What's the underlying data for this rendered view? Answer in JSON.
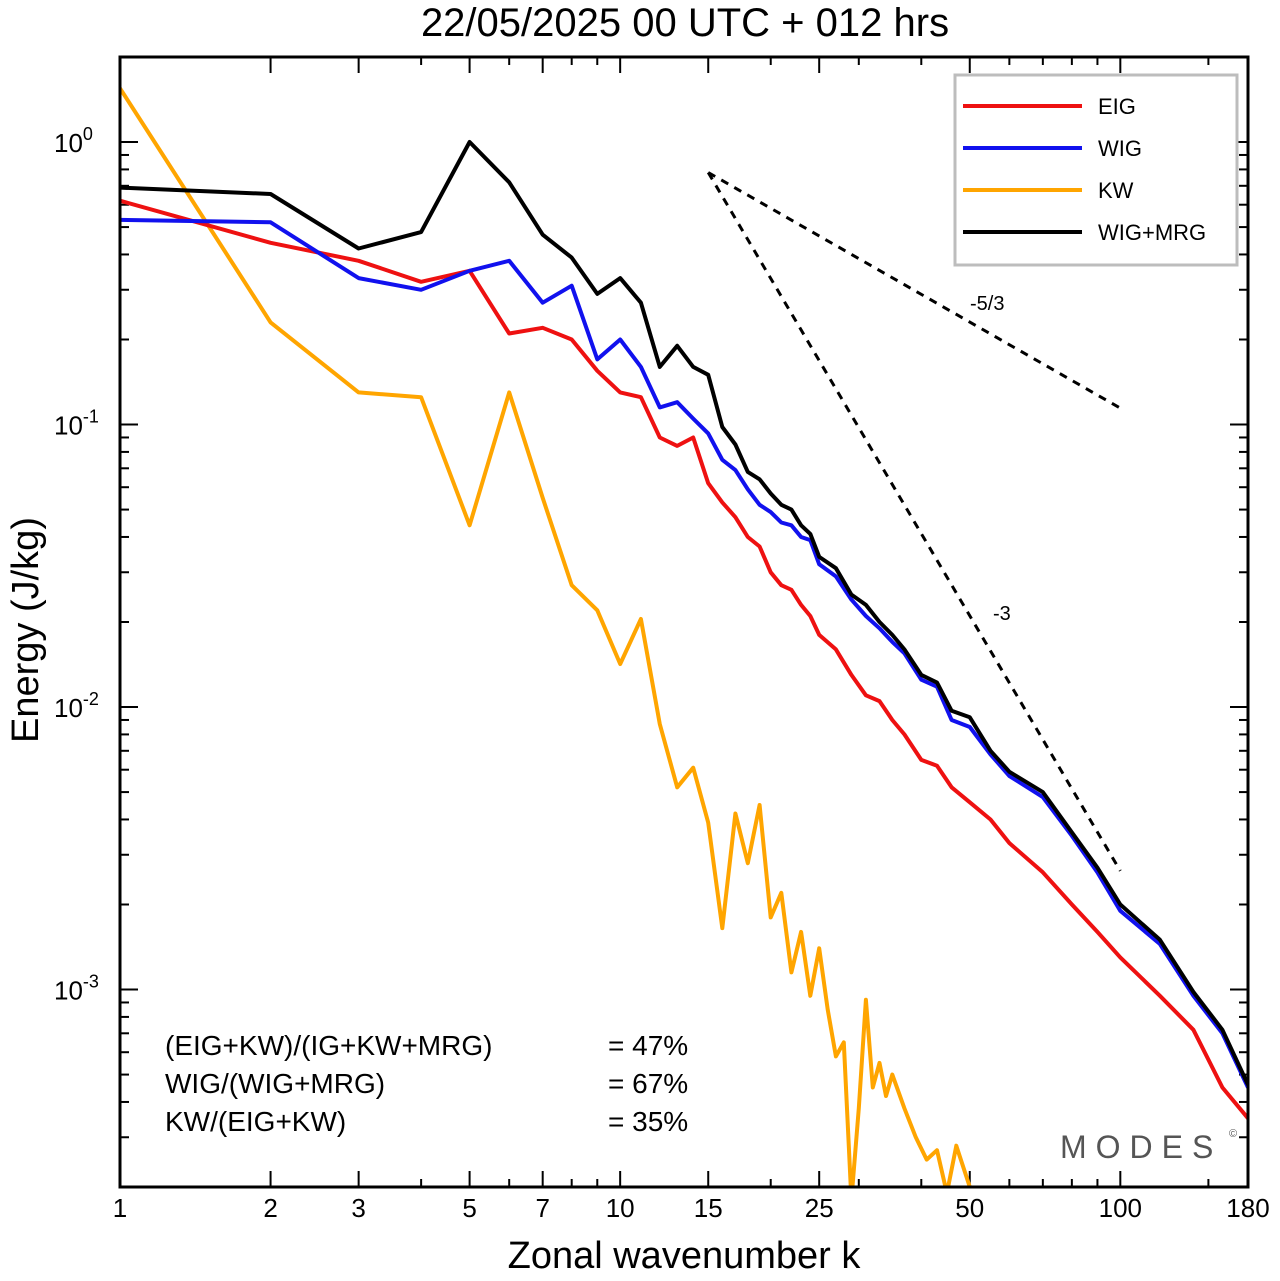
{
  "chart_data": {
    "type": "line",
    "title": "22/05/2025  00 UTC  + 012 hrs",
    "xlabel": "Zonal wavenumber k",
    "ylabel": "Energy (J/kg)",
    "xscale": "log",
    "yscale": "log",
    "xlim": [
      1,
      180
    ],
    "ylim": [
      0.0002,
      2.0
    ],
    "x_ticks": [
      1,
      2,
      3,
      5,
      7,
      10,
      15,
      25,
      50,
      100,
      180
    ],
    "y_ticks": [
      {
        "value": 1,
        "base": "10",
        "exp": "0"
      },
      {
        "value": 0.1,
        "base": "10",
        "exp": "-1"
      },
      {
        "value": 0.01,
        "base": "10",
        "exp": "-2"
      },
      {
        "value": 0.001,
        "base": "10",
        "exp": "-3"
      }
    ],
    "legend": {
      "position": "top-right"
    },
    "grid": false,
    "series": [
      {
        "name": "EIG",
        "color": "#ee1111",
        "x": [
          1,
          2,
          3,
          4,
          5,
          6,
          7,
          8,
          9,
          10,
          11,
          12,
          13,
          14,
          15,
          16,
          17,
          18,
          19,
          20,
          21,
          22,
          23,
          24,
          25,
          27,
          29,
          31,
          33,
          35,
          37,
          40,
          43,
          46,
          50,
          55,
          60,
          70,
          80,
          90,
          100,
          120,
          140,
          160,
          180
        ],
        "y": [
          0.62,
          0.44,
          0.38,
          0.32,
          0.35,
          0.21,
          0.22,
          0.2,
          0.155,
          0.13,
          0.125,
          0.09,
          0.084,
          0.09,
          0.062,
          0.053,
          0.047,
          0.04,
          0.037,
          0.03,
          0.027,
          0.026,
          0.023,
          0.021,
          0.018,
          0.016,
          0.013,
          0.011,
          0.0105,
          0.009,
          0.008,
          0.0065,
          0.0062,
          0.0052,
          0.0046,
          0.004,
          0.0033,
          0.0026,
          0.002,
          0.0016,
          0.0013,
          0.00095,
          0.00072,
          0.00045,
          0.00035
        ]
      },
      {
        "name": "WIG",
        "color": "#1111ee",
        "x": [
          1,
          2,
          3,
          4,
          5,
          6,
          7,
          8,
          9,
          10,
          11,
          12,
          13,
          14,
          15,
          16,
          17,
          18,
          19,
          20,
          21,
          22,
          23,
          24,
          25,
          27,
          29,
          31,
          33,
          35,
          37,
          40,
          43,
          46,
          50,
          55,
          60,
          70,
          80,
          90,
          100,
          120,
          140,
          160,
          180
        ],
        "y": [
          0.53,
          0.52,
          0.33,
          0.3,
          0.35,
          0.38,
          0.27,
          0.31,
          0.17,
          0.2,
          0.16,
          0.115,
          0.12,
          0.105,
          0.093,
          0.075,
          0.069,
          0.059,
          0.052,
          0.049,
          0.045,
          0.044,
          0.04,
          0.039,
          0.032,
          0.029,
          0.024,
          0.021,
          0.019,
          0.017,
          0.0155,
          0.0125,
          0.0118,
          0.009,
          0.0085,
          0.0068,
          0.0057,
          0.0048,
          0.0035,
          0.0026,
          0.0019,
          0.00145,
          0.00095,
          0.0007,
          0.00045
        ]
      },
      {
        "name": "KW",
        "color": "#ffa500",
        "x": [
          1,
          2,
          3,
          4,
          5,
          6,
          7,
          8,
          9,
          10,
          11,
          12,
          13,
          14,
          15,
          16,
          17,
          18,
          19,
          20,
          21,
          22,
          23,
          24,
          25,
          26,
          27,
          28,
          29,
          30,
          31,
          32,
          33,
          34,
          35,
          37,
          39,
          41,
          43,
          45,
          47,
          50
        ],
        "y": [
          1.55,
          0.23,
          0.13,
          0.125,
          0.044,
          0.13,
          0.055,
          0.027,
          0.022,
          0.0142,
          0.0205,
          0.0087,
          0.0052,
          0.0061,
          0.0039,
          0.00165,
          0.0042,
          0.0028,
          0.0045,
          0.0018,
          0.0022,
          0.00115,
          0.0016,
          0.00095,
          0.0014,
          0.00085,
          0.00058,
          0.00065,
          0.00018,
          0.00038,
          0.00092,
          0.00045,
          0.00055,
          0.00042,
          0.0005,
          0.00038,
          0.0003,
          0.00025,
          0.00027,
          0.00019,
          0.00028,
          0.0002
        ]
      },
      {
        "name": "WIG+MRG",
        "color": "#000000",
        "x": [
          1,
          2,
          3,
          4,
          5,
          6,
          7,
          8,
          9,
          10,
          11,
          12,
          13,
          14,
          15,
          16,
          17,
          18,
          19,
          20,
          21,
          22,
          23,
          24,
          25,
          27,
          29,
          31,
          33,
          35,
          37,
          40,
          43,
          46,
          50,
          55,
          60,
          70,
          80,
          90,
          100,
          120,
          140,
          160,
          180
        ],
        "y": [
          0.69,
          0.655,
          0.42,
          0.48,
          1.0,
          0.72,
          0.47,
          0.39,
          0.29,
          0.33,
          0.27,
          0.16,
          0.19,
          0.16,
          0.15,
          0.098,
          0.085,
          0.068,
          0.064,
          0.057,
          0.052,
          0.05,
          0.044,
          0.041,
          0.034,
          0.031,
          0.025,
          0.023,
          0.02,
          0.018,
          0.016,
          0.013,
          0.0122,
          0.0097,
          0.0092,
          0.007,
          0.0059,
          0.005,
          0.0036,
          0.0027,
          0.002,
          0.0015,
          0.00098,
          0.00072,
          0.00046
        ]
      }
    ],
    "reference_slopes": [
      {
        "label": "-5/3",
        "x": [
          15,
          100
        ],
        "y": [
          0.78,
          0.1143
        ]
      },
      {
        "label": "-3",
        "x": [
          15,
          100
        ],
        "y": [
          0.78,
          0.00263
        ]
      }
    ],
    "annotations": [
      {
        "left": "(EIG+KW)/(IG+KW+MRG)",
        "right": "= 47%"
      },
      {
        "left": "WIG/(WIG+MRG)",
        "right": "= 67%"
      },
      {
        "left": "KW/(EIG+KW)",
        "right": "= 35%"
      }
    ],
    "watermark": "MODES",
    "watermark_symbol": "©"
  }
}
